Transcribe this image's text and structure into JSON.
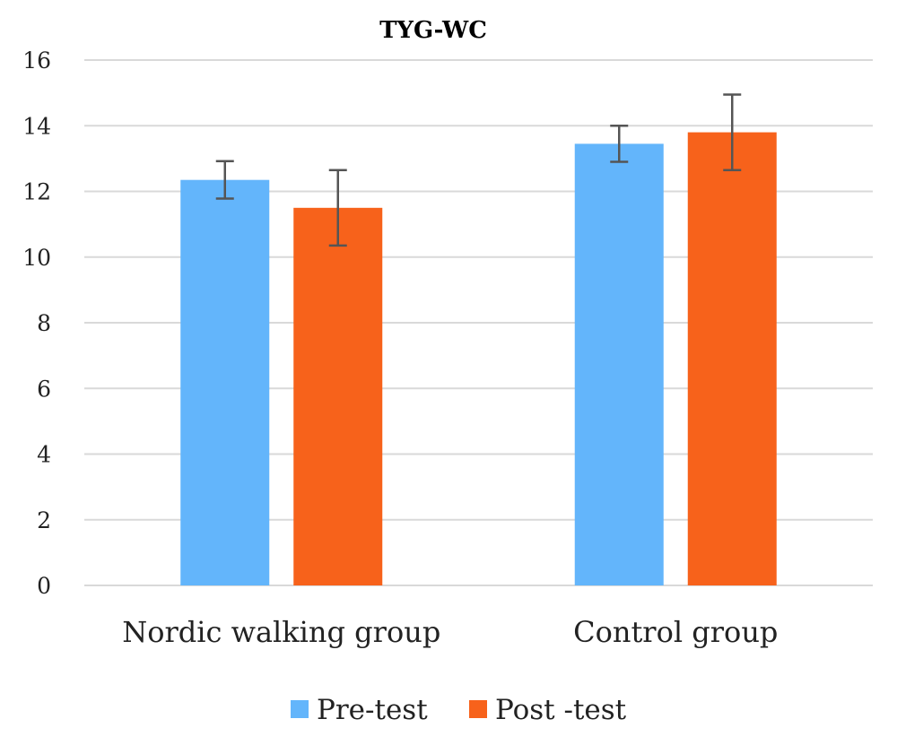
{
  "chart_data": {
    "type": "bar",
    "title": "TYG-WC",
    "xlabel": "",
    "ylabel": "",
    "ylim": [
      0,
      16
    ],
    "yticks": [
      0,
      2,
      4,
      6,
      8,
      10,
      12,
      14,
      16
    ],
    "grid": true,
    "legend_position": "bottom",
    "categories": [
      "Nordic walking group",
      "Control group"
    ],
    "series": [
      {
        "name": "Pre-test",
        "color": "#63b5fb",
        "values": [
          12.35,
          13.45
        ],
        "error": [
          0.57,
          0.55
        ]
      },
      {
        "name": "Post -test",
        "color": "#f7621b",
        "values": [
          11.5,
          13.8
        ],
        "error": [
          1.15,
          1.15
        ]
      }
    ]
  }
}
